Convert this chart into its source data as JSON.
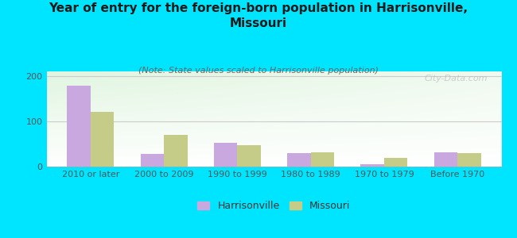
{
  "title": "Year of entry for the foreign-born population in Harrisonville,\nMissouri",
  "subtitle": "(Note: State values scaled to Harrisonville population)",
  "categories": [
    "2010 or later",
    "2000 to 2009",
    "1990 to 1999",
    "1980 to 1989",
    "1970 to 1979",
    "Before 1970"
  ],
  "harrisonville_values": [
    178,
    28,
    52,
    30,
    5,
    32
  ],
  "missouri_values": [
    120,
    70,
    47,
    32,
    20,
    30
  ],
  "harrisonville_color": "#c9a8e0",
  "missouri_color": "#c5cc88",
  "background_color": "#00e5ff",
  "ylim": [
    0,
    210
  ],
  "yticks": [
    0,
    100,
    200
  ],
  "watermark": "City-Data.com",
  "legend_harrisonville": "Harrisonville",
  "legend_missouri": "Missouri",
  "title_fontsize": 11,
  "subtitle_fontsize": 8,
  "tick_fontsize": 8,
  "legend_fontsize": 9
}
